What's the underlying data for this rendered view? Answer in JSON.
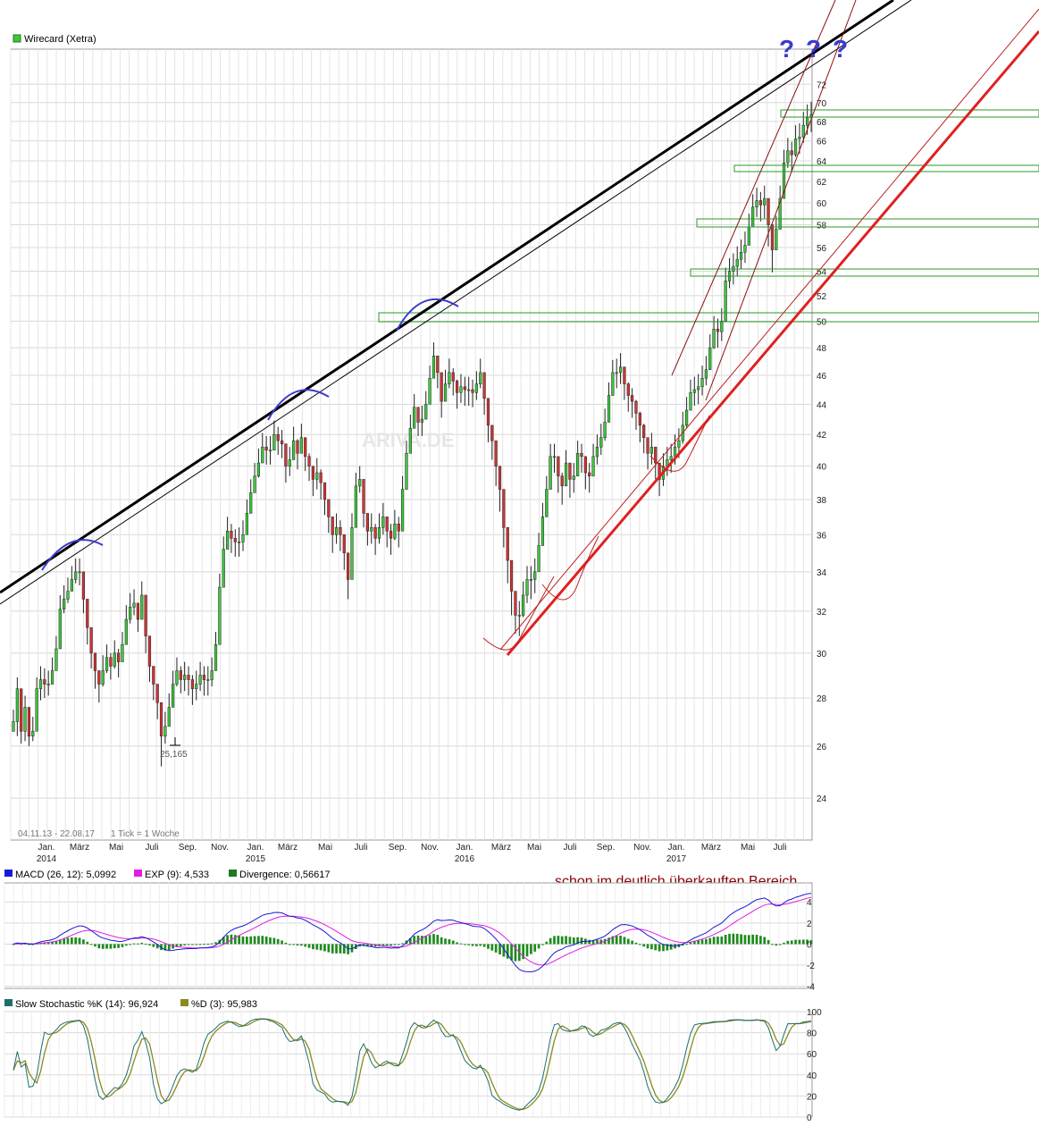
{
  "chart_data": [
    {
      "type": "candlestick",
      "title": "",
      "legend": [
        {
          "label": "Wirecard (Xetra)",
          "color": "#3cc83c"
        }
      ],
      "date_range_label": "04.11.13 - 22.08.17",
      "tick_label": "1 Tick = 1 Woche",
      "x_ticks": [
        "Jan.",
        "März",
        "Mai",
        "Juli",
        "Sep.",
        "Nov.",
        "Jan.",
        "März",
        "Mai",
        "Juli",
        "Sep.",
        "Nov.",
        "Jan.",
        "März",
        "Mai",
        "Juli",
        "Sep.",
        "Nov.",
        "Jan.",
        "März",
        "Mai",
        "Juli"
      ],
      "x_years": [
        "2014",
        "2015",
        "2016",
        "2017"
      ],
      "y_scale": "log",
      "y_ticks": [
        24,
        26,
        28,
        30,
        32,
        34,
        36,
        38,
        40,
        42,
        44,
        46,
        48,
        50,
        52,
        54,
        56,
        58,
        60,
        62,
        64,
        66,
        68,
        70,
        72
      ],
      "ylim": [
        22.5,
        76
      ],
      "min_label": "25,165",
      "watermark": "ARIVA.DE",
      "weekly_close": [
        27.0,
        28.4,
        26.6,
        27.6,
        26.4,
        26.6,
        28.4,
        28.8,
        28.6,
        28.6,
        29.2,
        30.2,
        32.1,
        32.6,
        33.0,
        33.6,
        34.0,
        34.0,
        32.6,
        31.2,
        30.0,
        29.2,
        28.6,
        29.2,
        29.8,
        29.4,
        30.0,
        29.6,
        30.4,
        31.6,
        32.2,
        32.4,
        31.6,
        32.8,
        30.8,
        29.4,
        28.6,
        27.8,
        26.4,
        26.8,
        27.6,
        28.6,
        29.2,
        28.8,
        29.0,
        28.8,
        28.4,
        28.6,
        29.0,
        28.8,
        28.8,
        29.2,
        30.4,
        33.2,
        35.2,
        36.2,
        35.8,
        35.6,
        35.6,
        36.0,
        37.2,
        38.4,
        39.4,
        40.2,
        41.2,
        41.0,
        41.0,
        42.0,
        41.6,
        41.4,
        40.0,
        40.4,
        41.6,
        40.8,
        41.8,
        40.6,
        40.0,
        39.2,
        39.6,
        39.0,
        38.0,
        37.0,
        36.0,
        36.4,
        36.0,
        35.0,
        33.6,
        36.4,
        38.8,
        39.2,
        37.2,
        36.2,
        36.4,
        35.8,
        36.4,
        37.0,
        36.2,
        35.8,
        36.6,
        36.2,
        38.6,
        40.8,
        42.4,
        43.8,
        42.8,
        43.0,
        44.0,
        45.8,
        47.4,
        46.2,
        44.2,
        45.4,
        46.2,
        45.6,
        44.8,
        45.2,
        45.0,
        45.0,
        44.8,
        45.4,
        46.2,
        44.4,
        42.6,
        41.6,
        40.0,
        38.6,
        36.4,
        34.6,
        33.0,
        31.8,
        31.8,
        32.8,
        33.6,
        33.6,
        34.0,
        35.4,
        37.0,
        38.6,
        40.6,
        40.6,
        39.4,
        38.8,
        40.2,
        39.2,
        39.4,
        40.8,
        40.6,
        39.6,
        39.4,
        40.6,
        41.2,
        41.8,
        42.8,
        44.6,
        46.2,
        46.2,
        46.6,
        45.4,
        44.6,
        44.2,
        43.4,
        42.6,
        41.8,
        40.8,
        41.2,
        40.2,
        39.2,
        40.0,
        40.4,
        40.6,
        41.2,
        41.6,
        42.6,
        43.6,
        44.8,
        45.0,
        45.2,
        45.8,
        46.4,
        48.0,
        49.4,
        49.2,
        50.0,
        53.2,
        54.0,
        54.4,
        55.0,
        55.6,
        56.2,
        57.8,
        59.6,
        60.2,
        59.8,
        60.4,
        58.0,
        55.8,
        57.6,
        60.4,
        63.8,
        65.0,
        64.6,
        66.2,
        66.4,
        67.6,
        68.4,
        68.7
      ],
      "weekly_low": [
        26.6,
        26.4,
        26.1,
        26.2,
        26.0,
        26.2,
        26.8,
        27.9,
        28.0,
        28.1,
        28.8,
        29.4,
        31.2,
        31.9,
        32.4,
        33.0,
        33.4,
        33.3,
        31.9,
        30.4,
        29.3,
        28.4,
        27.8,
        28.5,
        29.1,
        28.8,
        29.3,
        28.9,
        29.7,
        30.8,
        31.4,
        31.8,
        31.0,
        32.0,
        30.0,
        28.7,
        27.9,
        27.1,
        25.2,
        26.1,
        26.9,
        27.9,
        28.5,
        28.2,
        28.3,
        28.1,
        27.7,
        27.9,
        28.3,
        28.1,
        28.1,
        28.5,
        29.4,
        32.1,
        34.3,
        35.4,
        35.0,
        34.8,
        34.8,
        35.1,
        36.3,
        37.5,
        38.5,
        39.3,
        40.3,
        40.1,
        40.1,
        41.1,
        40.7,
        40.5,
        39.0,
        39.4,
        40.6,
        39.8,
        40.8,
        39.7,
        39.1,
        38.2,
        38.6,
        38.0,
        37.1,
        36.1,
        35.0,
        35.5,
        35.1,
        34.1,
        32.6,
        34.4,
        37.8,
        38.4,
        36.4,
        35.4,
        35.5,
        34.9,
        35.5,
        36.0,
        35.3,
        34.9,
        35.7,
        35.3,
        37.6,
        39.6,
        41.4,
        42.6,
        41.9,
        41.9,
        43.0,
        44.6,
        46.3,
        45.1,
        43.1,
        44.3,
        45.1,
        44.6,
        43.7,
        44.1,
        43.9,
        43.9,
        43.8,
        44.3,
        45.1,
        43.3,
        41.5,
        40.4,
        38.8,
        37.3,
        35.3,
        33.4,
        31.8,
        30.9,
        30.8,
        31.7,
        32.4,
        32.6,
        32.9,
        34.3,
        35.8,
        37.4,
        39.4,
        39.6,
        38.4,
        37.7,
        39.1,
        38.1,
        38.4,
        39.7,
        39.6,
        38.6,
        38.4,
        39.5,
        40.1,
        40.7,
        41.6,
        43.3,
        45.0,
        45.1,
        45.4,
        44.3,
        43.5,
        43.1,
        42.3,
        41.5,
        40.8,
        39.8,
        40.1,
        39.2,
        38.2,
        38.8,
        39.4,
        39.6,
        40.1,
        40.5,
        41.4,
        42.4,
        43.6,
        43.9,
        44.0,
        44.6,
        45.3,
        46.5,
        47.9,
        48.0,
        48.5,
        51.7,
        52.6,
        52.9,
        53.6,
        54.2,
        54.7,
        56.3,
        58.1,
        58.7,
        58.3,
        58.6,
        56.1,
        53.9,
        55.8,
        58.6,
        61.7,
        63.3,
        63.0,
        64.4,
        64.7,
        65.8,
        66.6,
        66.9
      ],
      "weekly_high": [
        27.5,
        28.9,
        27.2,
        28.1,
        27.0,
        27.2,
        28.9,
        29.4,
        29.3,
        29.2,
        29.8,
        30.8,
        32.8,
        33.3,
        33.7,
        34.3,
        34.7,
        34.7,
        33.3,
        31.9,
        30.6,
        29.8,
        29.2,
        29.9,
        30.4,
        30.0,
        30.6,
        30.2,
        31.0,
        32.3,
        32.9,
        33.1,
        32.2,
        33.5,
        31.5,
        30.0,
        29.2,
        28.4,
        27.0,
        27.4,
        28.2,
        29.2,
        29.8,
        29.4,
        29.6,
        29.4,
        29.0,
        29.2,
        29.6,
        29.4,
        29.4,
        29.8,
        31.0,
        33.9,
        35.9,
        37.0,
        36.6,
        36.3,
        36.4,
        36.8,
        38.0,
        39.2,
        40.2,
        41.1,
        42.1,
        41.9,
        41.9,
        42.9,
        42.5,
        42.3,
        40.8,
        41.2,
        42.5,
        41.7,
        42.7,
        41.5,
        40.8,
        40.0,
        40.5,
        39.8,
        38.8,
        37.8,
        36.8,
        37.2,
        36.8,
        35.8,
        34.3,
        37.2,
        39.6,
        40.0,
        38.0,
        37.0,
        37.2,
        36.6,
        37.2,
        37.8,
        37.0,
        36.6,
        37.4,
        37.0,
        39.4,
        41.6,
        43.3,
        44.7,
        43.7,
        43.9,
        44.9,
        46.7,
        48.4,
        47.2,
        45.1,
        46.4,
        47.2,
        46.5,
        45.7,
        46.1,
        45.9,
        45.9,
        45.7,
        46.3,
        47.2,
        45.3,
        43.5,
        42.5,
        40.8,
        39.4,
        37.2,
        35.3,
        33.7,
        32.5,
        32.5,
        33.5,
        34.3,
        34.3,
        34.7,
        36.1,
        37.8,
        39.4,
        41.4,
        41.4,
        40.2,
        39.6,
        41.0,
        40.0,
        40.2,
        41.6,
        41.4,
        40.4,
        40.2,
        41.4,
        42.0,
        42.7,
        43.7,
        45.5,
        47.1,
        47.2,
        47.6,
        46.3,
        45.5,
        45.1,
        44.3,
        43.5,
        42.7,
        41.6,
        42.1,
        41.0,
        40.0,
        40.8,
        41.2,
        41.4,
        42.0,
        42.4,
        43.5,
        44.5,
        45.7,
        45.9,
        46.1,
        46.7,
        47.4,
        49.0,
        50.4,
        50.2,
        51.0,
        54.3,
        55.1,
        55.5,
        56.1,
        56.7,
        57.4,
        59.0,
        60.8,
        61.4,
        61.0,
        61.6,
        59.2,
        57.0,
        58.8,
        61.6,
        65.1,
        66.3,
        65.9,
        67.6,
        67.8,
        69.0,
        69.8,
        70.1
      ]
    },
    {
      "type": "line",
      "legend": [
        {
          "label": "MACD (26, 12): 5,0992",
          "color": "#1a1ad6"
        },
        {
          "label": "EXP (9): 4,533",
          "color": "#e01ee0"
        },
        {
          "label": "Divergence: 0,56617",
          "color": "#1e7a1e"
        }
      ],
      "y_ticks": [
        -4,
        -2,
        0,
        2,
        4
      ],
      "ylim": [
        -4.2,
        5.8
      ],
      "annotation": "schon im deutlich überkauften Bereich"
    },
    {
      "type": "line",
      "legend": [
        {
          "label": "Slow Stochastic %K (14): 96,924",
          "color": "#1e6e6e"
        },
        {
          "label": "%D (3): 95,983",
          "color": "#8a8a1e"
        }
      ],
      "y_ticks": [
        0,
        20,
        40,
        60,
        80,
        100
      ],
      "ylim": [
        0,
        100
      ]
    }
  ],
  "annotations": {
    "question_marks": [
      "?",
      "?",
      "?"
    ]
  },
  "colors": {
    "up": "#3cc83c",
    "down": "#d23232",
    "trend_black": "#000000",
    "trend_red": "#e02020",
    "arc_blue": "#3a3ad0",
    "annotation_red": "#8b0000",
    "grid": "#d8d8d8"
  }
}
